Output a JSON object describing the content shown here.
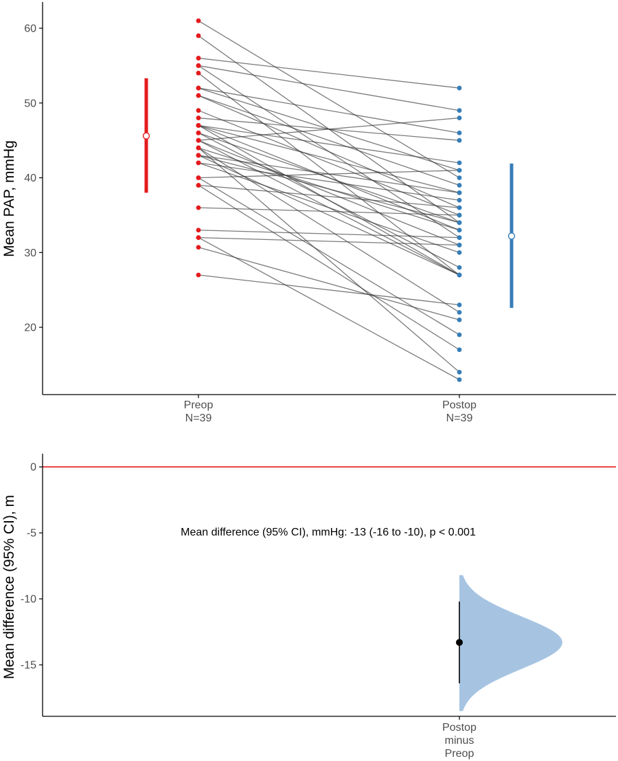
{
  "chart_data": [
    {
      "type": "paired-dot",
      "title": "",
      "xlabel": "",
      "ylabel": "Mean PAP, mmHg",
      "ylim": [
        11,
        63.5
      ],
      "yticks": [
        20,
        30,
        40,
        50,
        60
      ],
      "grid": false,
      "categories": [
        {
          "label": "Preop",
          "n": "N=39"
        },
        {
          "label": "Postop",
          "n": "N=39"
        }
      ],
      "colors": {
        "preop": "#e41a1c",
        "postop": "#377eb8",
        "pair_line": "#333333"
      },
      "pairs": [
        [
          61,
          40
        ],
        [
          59,
          34
        ],
        [
          56,
          52
        ],
        [
          55,
          49
        ],
        [
          55,
          32
        ],
        [
          54,
          27
        ],
        [
          52,
          46
        ],
        [
          52,
          41
        ],
        [
          51,
          39
        ],
        [
          51,
          36
        ],
        [
          49,
          35
        ],
        [
          48,
          45
        ],
        [
          47,
          42
        ],
        [
          47,
          38
        ],
        [
          47,
          33
        ],
        [
          47,
          27
        ],
        [
          46,
          34
        ],
        [
          46,
          28
        ],
        [
          45,
          48
        ],
        [
          45,
          31
        ],
        [
          45,
          27
        ],
        [
          44,
          33
        ],
        [
          44,
          22
        ],
        [
          43,
          34
        ],
        [
          43,
          27
        ],
        [
          42,
          37
        ],
        [
          42,
          30
        ],
        [
          40,
          41
        ],
        [
          40,
          19
        ],
        [
          39,
          36
        ],
        [
          39,
          17
        ],
        [
          36,
          35
        ],
        [
          33,
          32
        ],
        [
          32,
          31
        ],
        [
          32,
          13
        ],
        [
          30.7,
          21
        ],
        [
          27,
          23
        ],
        [
          44,
          14
        ],
        [
          43,
          38
        ]
      ],
      "summary": {
        "preop": {
          "mean": 45.6,
          "sd_low": 38,
          "sd_high": 53.3
        },
        "postop": {
          "mean": 32.2,
          "sd_low": 22.6,
          "sd_high": 41.9
        }
      }
    },
    {
      "type": "estimation",
      "title": "",
      "ylabel": "Mean difference (95% CI), m",
      "ylim": [
        -18.9,
        1
      ],
      "yticks": [
        0,
        -5,
        -10,
        -15
      ],
      "tick_labels": [
        "0",
        "-5",
        "-10",
        "-15"
      ],
      "grid": false,
      "category": [
        "Postop",
        "minus",
        "Preop"
      ],
      "reference_line": {
        "value": 0,
        "color": "#e41a1c"
      },
      "difference": {
        "mean": -13.3,
        "ci_low": -16.4,
        "ci_high": -10.2
      },
      "distribution": {
        "min": -18.5,
        "max": -8.2,
        "mode": -13.3,
        "color": "#a6c4e2"
      },
      "annotation": "Mean difference (95% CI), mmHg: -13 (-16 to -10), p < 0.001"
    }
  ]
}
